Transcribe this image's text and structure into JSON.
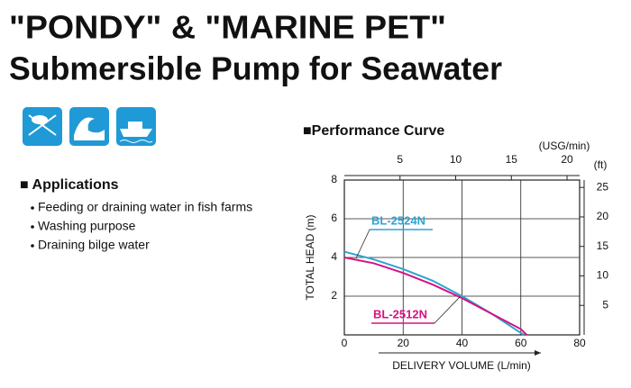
{
  "header": {
    "title_lines": [
      "\"PONDY\" & \"MARINE PET\"",
      "Submersible Pump for Seawater"
    ]
  },
  "applications": {
    "heading": "■ Applications",
    "items": [
      "Feeding or draining water in fish farms",
      "Washing purpose",
      "Draining bilge water"
    ]
  },
  "chart_data": {
    "type": "line",
    "title": "■Performance Curve",
    "x_label": "DELIVERY VOLUME (L/min)",
    "y_label": "TOTAL HEAD (m)",
    "xlim": [
      0,
      80
    ],
    "xticks": [
      0,
      20,
      40,
      60,
      80
    ],
    "ylim": [
      0,
      8
    ],
    "yticks": [
      2,
      4,
      6,
      8
    ],
    "x2_label": "(USG/min)",
    "x2lim": [
      0,
      21.13
    ],
    "x2ticks": [
      5,
      10,
      15,
      20
    ],
    "y2_label": "(ft)",
    "y2lim": [
      0,
      26.25
    ],
    "y2ticks": [
      5,
      10,
      15,
      20,
      25
    ],
    "grid": true,
    "series": [
      {
        "name": "BL-2524N",
        "color": "#2ea3d5",
        "x": [
          0,
          10,
          20,
          30,
          40,
          50,
          60,
          61
        ],
        "values": [
          4.3,
          3.9,
          3.4,
          2.8,
          2.0,
          1.1,
          0.1,
          0
        ]
      },
      {
        "name": "BL-2512N",
        "color": "#d6127f",
        "x": [
          0,
          10,
          20,
          30,
          40,
          50,
          60,
          62
        ],
        "values": [
          4.0,
          3.7,
          3.2,
          2.6,
          1.9,
          1.1,
          0.3,
          0
        ]
      }
    ]
  }
}
